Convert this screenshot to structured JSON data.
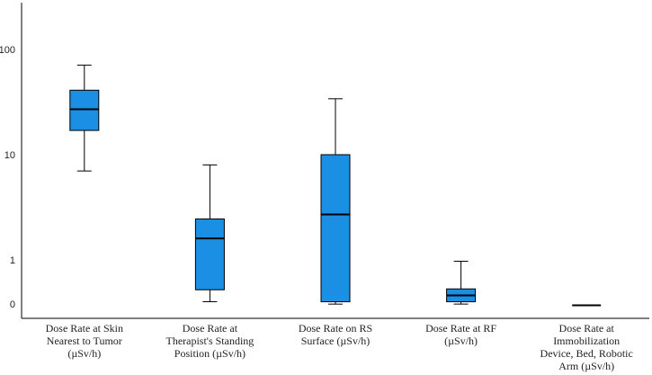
{
  "chart_data": {
    "type": "boxplot",
    "title": "",
    "xlabel": "",
    "ylabel": "",
    "yscale": "log",
    "yticks": [
      "100",
      "10",
      "1",
      "0"
    ],
    "box_color": "#1a8fe3",
    "categories": [
      [
        "Dose Rate at Skin",
        "Nearest to Tumor",
        "(µSv/h)"
      ],
      [
        "Dose Rate at",
        "Therapist's Standing",
        "Position (µSv/h)"
      ],
      [
        "Dose Rate on RS",
        "Surface (µSv/h)"
      ],
      [
        "Dose Rate at RF",
        "(µSv/h)"
      ],
      [
        "Dose Rate at",
        "Immobilization",
        "Device, Bed, Robotic",
        "Arm (µSv/h)"
      ]
    ],
    "boxes": [
      {
        "min": 7.0,
        "q1": 17.0,
        "median": 27.0,
        "q3": 41.0,
        "max": 71.0
      },
      {
        "min": 0.4,
        "q1": 0.52,
        "median": 1.6,
        "q3": 2.45,
        "max": 8.0
      },
      {
        "min": 0.38,
        "q1": 0.4,
        "median": 2.7,
        "q3": 10.0,
        "max": 34.0
      },
      {
        "min": 0.38,
        "q1": 0.4,
        "median": 0.46,
        "q3": 0.53,
        "max": 0.97
      },
      {
        "min": 0.37,
        "q1": 0.37,
        "median": 0.37,
        "q3": 0.37,
        "max": 0.37
      }
    ]
  }
}
